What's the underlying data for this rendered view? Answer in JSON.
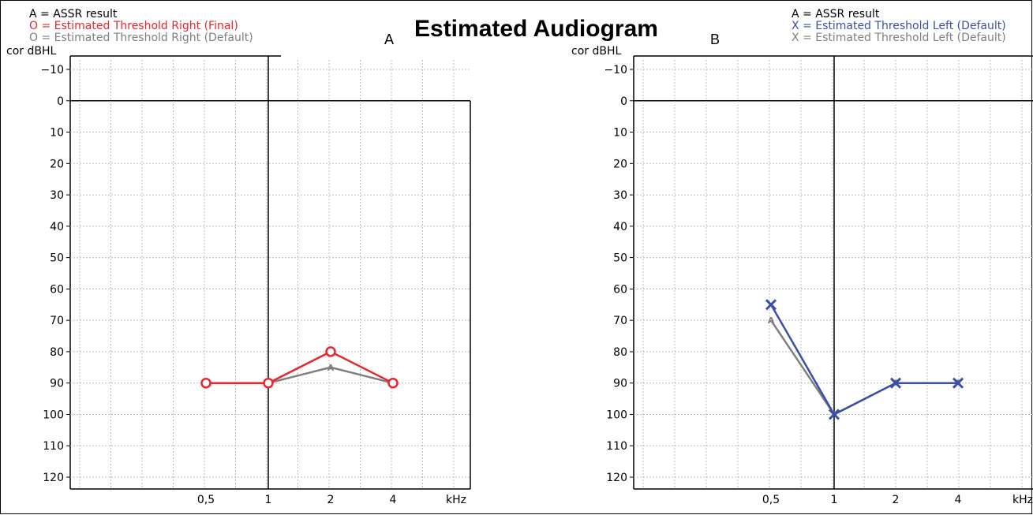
{
  "title": "Estimated Audiogram",
  "colors": {
    "final_right": "#e8262d",
    "default": "#7f7f7f",
    "final_left": "#3b4fa8",
    "axis": "#000000",
    "grid": "#bcbcbc"
  },
  "chart_data": [
    {
      "type": "line",
      "panel_label": "A",
      "ylabel": "cor dBHL",
      "xlabel": "kHz",
      "legend": [
        "A = ASSR result",
        "O = Estimated Threshold Right (Final)",
        "O = Estimated Threshold Right (Default)"
      ],
      "ylim": [
        -10,
        120
      ],
      "y_reversed": true,
      "yticks": [
        "-10",
        "0",
        "10",
        "20",
        "30",
        "40",
        "50",
        "60",
        "70",
        "80",
        "90",
        "100",
        "110",
        "120"
      ],
      "xticks": [
        "0,5",
        "1",
        "2",
        "4",
        "kHz"
      ],
      "grid": true,
      "series": [
        {
          "name": "O = Estimated Threshold Right (Final)",
          "color": "#e8262d",
          "marker": "circle",
          "x": [
            "0,5",
            "1",
            "2",
            "4"
          ],
          "values": [
            90,
            90,
            80,
            90
          ]
        },
        {
          "name": "O = Estimated Threshold Right (Default)",
          "color": "#7f7f7f",
          "marker": "A",
          "x": [
            "0,5",
            "1",
            "2",
            "4"
          ],
          "values": [
            90,
            90,
            85,
            90
          ]
        }
      ]
    },
    {
      "type": "line",
      "panel_label": "B",
      "ylabel": "cor dBHL",
      "xlabel": "kHz",
      "legend": [
        "A = ASSR result",
        "X = Estimated Threshold Left (Default)",
        "X = Estimated Threshold Left (Default)"
      ],
      "ylim": [
        -10,
        120
      ],
      "y_reversed": true,
      "yticks": [
        "-10",
        "0",
        "10",
        "20",
        "30",
        "40",
        "50",
        "60",
        "70",
        "80",
        "90",
        "100",
        "110",
        "120"
      ],
      "xticks": [
        "0,5",
        "1",
        "2",
        "4",
        "kHz"
      ],
      "grid": true,
      "series": [
        {
          "name": "X = Estimated Threshold Left (Default)",
          "color": "#3b4fa8",
          "marker": "cross",
          "x": [
            "0,5",
            "1",
            "2",
            "4"
          ],
          "values": [
            65,
            100,
            90,
            90
          ]
        },
        {
          "name": "X = Estimated Threshold Left (Default)",
          "color": "#7f7f7f",
          "marker": "A",
          "x": [
            "0,5",
            "1",
            "2",
            "4"
          ],
          "values": [
            70,
            100,
            90,
            90
          ]
        }
      ]
    }
  ]
}
